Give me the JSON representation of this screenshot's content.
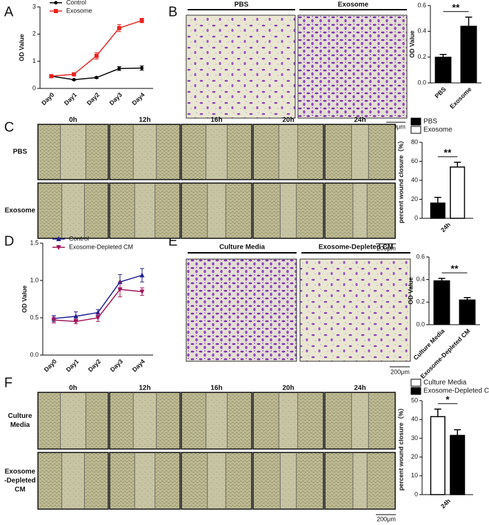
{
  "panels": [
    "A",
    "B",
    "C",
    "D",
    "E",
    "F"
  ],
  "transwell_B": [
    "PBS",
    "Exosome"
  ],
  "wound_C": {
    "columns": [
      "0h",
      "12h",
      "16h",
      "20h",
      "24h"
    ],
    "rows": [
      [
        "PBS"
      ],
      [
        "Exosome"
      ]
    ]
  },
  "transwell_E": [
    "Culture Media",
    "Exosome-Depleted CM"
  ],
  "wound_F": {
    "columns": [
      "0h",
      "12h",
      "16h",
      "20h",
      "24h"
    ],
    "rows": [
      [
        "Culture",
        "Media"
      ],
      [
        "Exosome",
        "-Depleted",
        "CM"
      ]
    ]
  },
  "scale_bars": [
    "200μm",
    "200μm",
    "200μm",
    "200μm"
  ],
  "chart_data": [
    {
      "type": "line",
      "ylabel": "OD Value",
      "categories": [
        "Day0",
        "Day1",
        "Day2",
        "Day3",
        "Day4"
      ],
      "series": [
        {
          "name": "Control",
          "color": "#000000",
          "marker": "circle",
          "values": [
            0.45,
            0.32,
            0.4,
            0.73,
            0.75
          ],
          "errors": [
            0.03,
            0.02,
            0.03,
            0.07,
            0.08
          ]
        },
        {
          "name": "Exosome",
          "color": "#e8231f",
          "marker": "square",
          "values": [
            0.45,
            0.52,
            1.2,
            2.22,
            2.5
          ],
          "errors": [
            0.04,
            0.04,
            0.12,
            0.13,
            0.08
          ]
        }
      ],
      "ylim": [
        0,
        3
      ],
      "yticks": [
        0,
        1,
        2,
        3
      ],
      "legend": "top-left"
    },
    {
      "type": "bar",
      "ylabel": "OD Value",
      "categories": [
        "PBS",
        "Exosome"
      ],
      "values": [
        0.2,
        0.44
      ],
      "errors": [
        0.02,
        0.07
      ],
      "color": "#000000",
      "ylim": [
        0,
        0.6
      ],
      "yticks": [
        {
          "value": 0,
          "label": "0.0"
        },
        0.2,
        0.4,
        0.6
      ],
      "annotations": [
        {
          "text": "**"
        }
      ]
    },
    {
      "type": "grouped-bar",
      "ylabel": "percent wound closure（%）",
      "categories": [
        "24h"
      ],
      "series": [
        {
          "name": "PBS",
          "color": "#000000",
          "values": [
            16
          ],
          "errors": [
            6
          ]
        },
        {
          "name": "Exosome",
          "color": "#ffffff",
          "values": [
            54
          ],
          "errors": [
            5
          ]
        }
      ],
      "ylim": [
        0,
        80
      ],
      "yticks": [
        0,
        20,
        40,
        60,
        80
      ],
      "legend": "top",
      "annotations": [
        {
          "text": "**"
        }
      ]
    },
    {
      "type": "line",
      "ylabel": "OD Value",
      "categories": [
        "Day0",
        "Day1",
        "Day2",
        "Day3",
        "Day4"
      ],
      "series": [
        {
          "name": "Control",
          "color": "#1f1f8f",
          "marker": "triangle",
          "values": [
            0.49,
            0.52,
            0.57,
            0.98,
            1.07
          ],
          "errors": [
            0.04,
            0.06,
            0.04,
            0.1,
            0.09
          ]
        },
        {
          "name": "Exosome-Depleted CM",
          "color": "#a0155a",
          "marker": "triangle-down",
          "values": [
            0.47,
            0.45,
            0.5,
            0.88,
            0.85
          ],
          "errors": [
            0.04,
            0.03,
            0.05,
            0.1,
            0.05
          ]
        }
      ],
      "ylim": [
        0,
        1.5
      ],
      "yticks": [
        {
          "value": 0,
          "label": "0.0"
        },
        0.5,
        {
          "value": 1,
          "label": "1.0"
        },
        1.5
      ],
      "legend": "top-left"
    },
    {
      "type": "bar",
      "ylabel": "OD Value",
      "categories": [
        "Culture Media",
        "Exosome-Depleted CM"
      ],
      "values": [
        0.39,
        0.22
      ],
      "errors": [
        0.02,
        0.02
      ],
      "color": "#000000",
      "ylim": [
        0,
        0.6
      ],
      "yticks": [
        {
          "value": 0,
          "label": "0.0"
        },
        0.2,
        0.4,
        0.6
      ],
      "annotations": [
        {
          "text": "**"
        }
      ]
    },
    {
      "type": "grouped-bar",
      "ylabel": "percent wound closure（%）",
      "categories": [
        "24h"
      ],
      "series": [
        {
          "name": "Culture Media",
          "color": "#ffffff",
          "values": [
            41.5
          ],
          "errors": [
            4
          ]
        },
        {
          "name": "Exosome-Depleted CM",
          "color": "#000000",
          "values": [
            31.5
          ],
          "errors": [
            3
          ]
        }
      ],
      "ylim": [
        0,
        50
      ],
      "yticks": [
        0,
        10,
        20,
        30,
        40,
        50
      ],
      "legend": "top",
      "annotations": [
        {
          "text": "*"
        }
      ]
    }
  ]
}
